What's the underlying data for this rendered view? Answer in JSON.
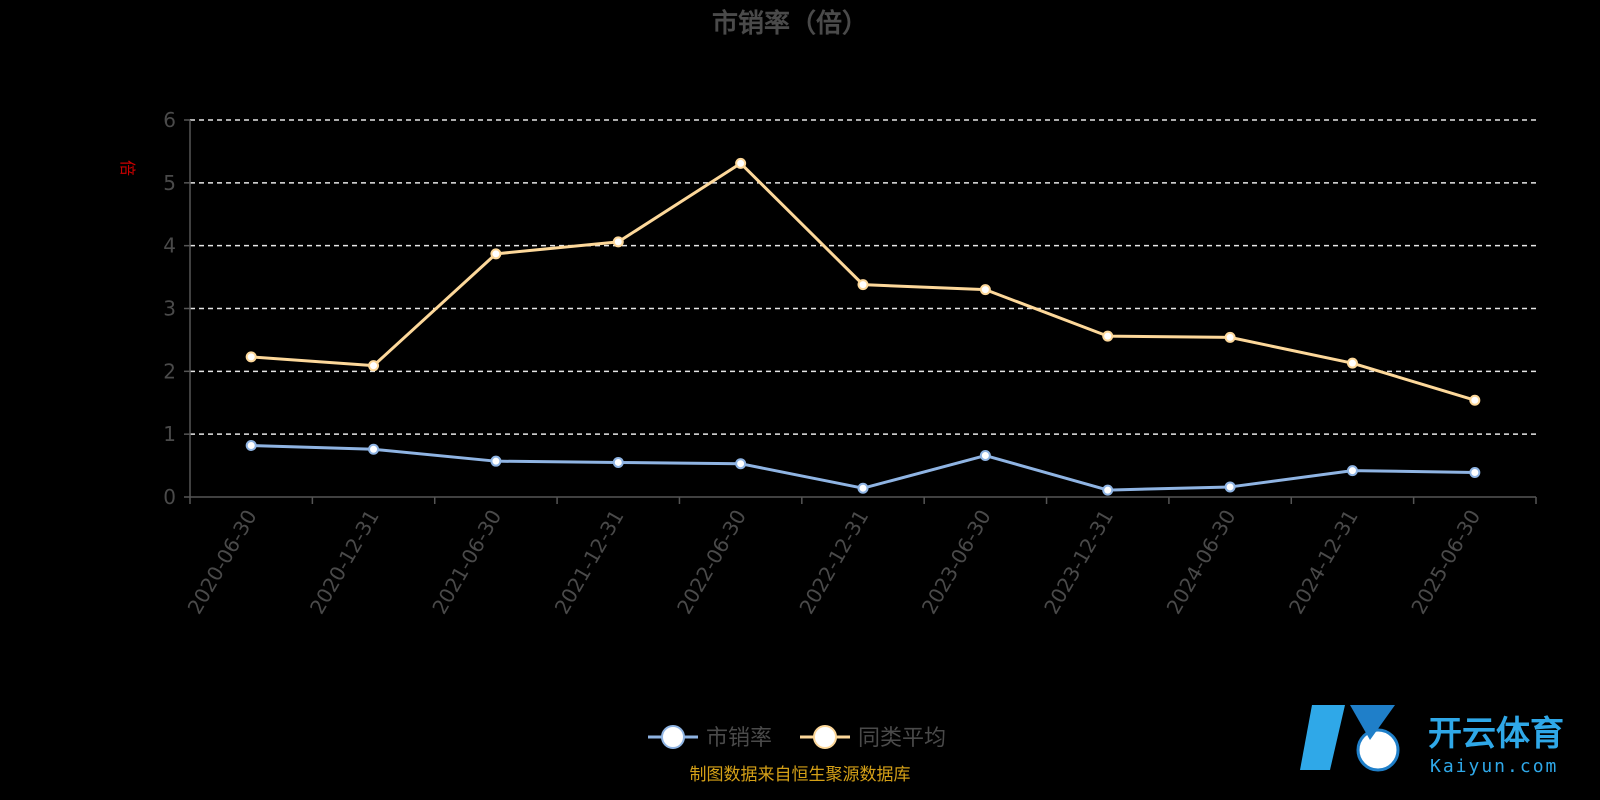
{
  "chart_data": {
    "type": "line",
    "title": "市销率（倍）",
    "ylabel": "倍",
    "ylim": [
      0,
      6
    ],
    "yticks": [
      0,
      1,
      2,
      3,
      4,
      5,
      6
    ],
    "grid": true,
    "legend_position": "bottom-center",
    "categories": [
      "2020-06-30",
      "2020-12-31",
      "2021-06-30",
      "2021-12-31",
      "2022-06-30",
      "2022-12-31",
      "2023-06-30",
      "2023-12-31",
      "2024-06-30",
      "2024-12-31",
      "2025-06-30"
    ],
    "series": [
      {
        "name": "市销率",
        "color": "#8fb4e3",
        "values": [
          0.82,
          0.76,
          0.57,
          0.55,
          0.53,
          0.14,
          0.66,
          0.11,
          0.16,
          0.42,
          0.39
        ]
      },
      {
        "name": "同类平均",
        "color": "#fdd89a",
        "values": [
          2.23,
          2.09,
          3.87,
          4.06,
          5.31,
          3.38,
          3.3,
          2.56,
          2.54,
          2.13,
          1.54
        ]
      }
    ]
  },
  "footer": {
    "source": "制图数据来自恒生聚源数据库"
  },
  "watermark": {
    "brand": "开云体育",
    "domain": "Kaiyun.com"
  }
}
